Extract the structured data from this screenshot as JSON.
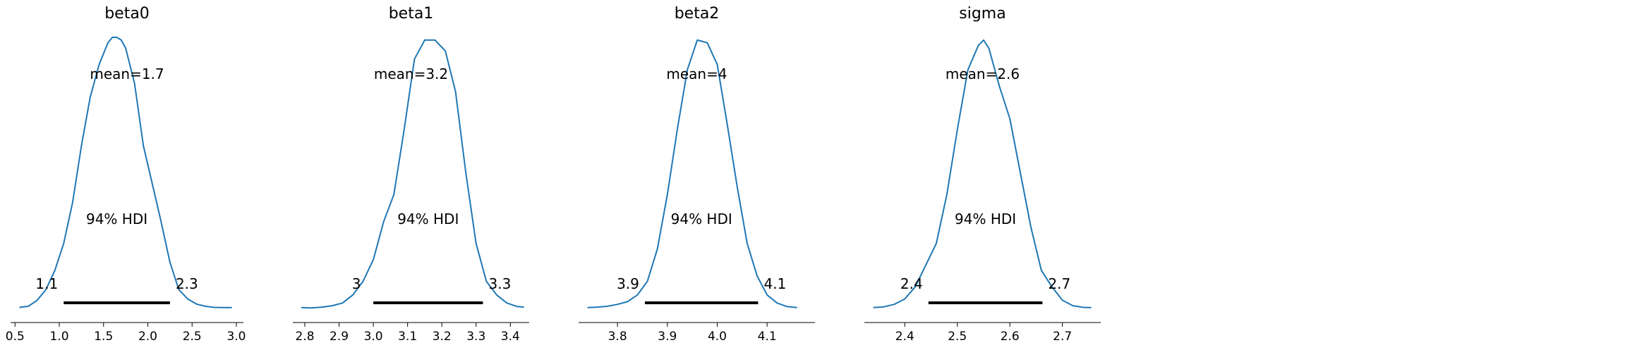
{
  "colors": {
    "density": "#1f77b4",
    "hdi_bar": "#000000",
    "axis": "#000000"
  },
  "chart_data": [
    {
      "type": "line",
      "title": "beta0",
      "mean_label": "mean=1.7",
      "hdi_text": "94% HDI",
      "hdi": [
        1.05,
        2.25
      ],
      "hdi_labels": [
        "1.1",
        "2.3"
      ],
      "xlim": [
        0.45,
        3.08
      ],
      "ylim": [
        0,
        1
      ],
      "ticks": [
        0.5,
        1.0,
        1.5,
        2.0,
        2.5,
        3.0
      ],
      "tick_labels": [
        "0.5",
        "1.0",
        "1.5",
        "2.0",
        "2.5",
        "3.0"
      ],
      "x": [
        0.55,
        0.65,
        0.75,
        0.85,
        0.95,
        1.05,
        1.15,
        1.25,
        1.35,
        1.45,
        1.55,
        1.6,
        1.65,
        1.7,
        1.75,
        1.85,
        1.95,
        2.05,
        2.15,
        2.25,
        2.35,
        2.45,
        2.55,
        2.65,
        2.75,
        2.85,
        2.95
      ],
      "y": [
        0.004,
        0.008,
        0.03,
        0.07,
        0.14,
        0.24,
        0.39,
        0.6,
        0.78,
        0.9,
        0.98,
        1.0,
        1.0,
        0.99,
        0.96,
        0.83,
        0.6,
        0.46,
        0.32,
        0.17,
        0.07,
        0.035,
        0.016,
        0.008,
        0.004,
        0.003,
        0.003
      ]
    },
    {
      "type": "line",
      "title": "beta1",
      "mean_label": "mean=3.2",
      "hdi_text": "94% HDI",
      "hdi": [
        3.0,
        3.32
      ],
      "hdi_labels": [
        "3",
        "3.3"
      ],
      "xlim": [
        2.765,
        3.455
      ],
      "ylim": [
        0,
        1
      ],
      "ticks": [
        2.8,
        2.9,
        3.0,
        3.1,
        3.2,
        3.3,
        3.4
      ],
      "tick_labels": [
        "2.8",
        "2.9",
        "3.0",
        "3.1",
        "3.2",
        "3.3",
        "3.4"
      ],
      "x": [
        2.79,
        2.82,
        2.85,
        2.88,
        2.91,
        2.94,
        2.97,
        3.0,
        3.03,
        3.06,
        3.09,
        3.12,
        3.15,
        3.18,
        3.21,
        3.24,
        3.27,
        3.3,
        3.33,
        3.36,
        3.39,
        3.42,
        3.44
      ],
      "y": [
        0.003,
        0.002,
        0.005,
        0.01,
        0.02,
        0.05,
        0.1,
        0.18,
        0.32,
        0.42,
        0.66,
        0.92,
        0.99,
        0.99,
        0.95,
        0.8,
        0.5,
        0.24,
        0.1,
        0.05,
        0.02,
        0.007,
        0.005
      ]
    },
    {
      "type": "line",
      "title": "beta2",
      "mean_label": "mean=4",
      "hdi_text": "94% HDI",
      "hdi": [
        3.855,
        4.082
      ],
      "hdi_labels": [
        "3.9",
        "4.1"
      ],
      "xlim": [
        3.722,
        4.196
      ],
      "ylim": [
        0,
        1
      ],
      "ticks": [
        3.8,
        3.9,
        4.0,
        4.1
      ],
      "tick_labels": [
        "3.8",
        "3.9",
        "4.0",
        "4.1"
      ],
      "x": [
        3.74,
        3.76,
        3.78,
        3.8,
        3.82,
        3.84,
        3.86,
        3.88,
        3.9,
        3.92,
        3.94,
        3.96,
        3.98,
        4.0,
        4.02,
        4.04,
        4.06,
        4.08,
        4.1,
        4.12,
        4.14,
        4.16
      ],
      "y": [
        0.003,
        0.005,
        0.008,
        0.015,
        0.025,
        0.05,
        0.1,
        0.22,
        0.42,
        0.66,
        0.88,
        0.99,
        0.98,
        0.9,
        0.68,
        0.45,
        0.24,
        0.12,
        0.05,
        0.02,
        0.007,
        0.003
      ]
    },
    {
      "type": "line",
      "title": "sigma",
      "mean_label": "mean=2.6",
      "hdi_text": "94% HDI",
      "hdi": [
        2.445,
        2.662
      ],
      "hdi_labels": [
        "2.4",
        "2.7"
      ],
      "xlim": [
        2.323,
        2.773
      ],
      "ylim": [
        0,
        1
      ],
      "ticks": [
        2.4,
        2.5,
        2.6,
        2.7
      ],
      "tick_labels": [
        "2.4",
        "2.5",
        "2.6",
        "2.7"
      ],
      "x": [
        2.34,
        2.36,
        2.38,
        2.4,
        2.42,
        2.44,
        2.46,
        2.48,
        2.5,
        2.52,
        2.54,
        2.55,
        2.56,
        2.58,
        2.6,
        2.62,
        2.64,
        2.66,
        2.68,
        2.7,
        2.72,
        2.74,
        2.755
      ],
      "y": [
        0.003,
        0.006,
        0.015,
        0.035,
        0.08,
        0.16,
        0.24,
        0.42,
        0.66,
        0.88,
        0.97,
        0.99,
        0.96,
        0.82,
        0.7,
        0.5,
        0.3,
        0.14,
        0.08,
        0.03,
        0.01,
        0.004,
        0.003
      ]
    }
  ]
}
